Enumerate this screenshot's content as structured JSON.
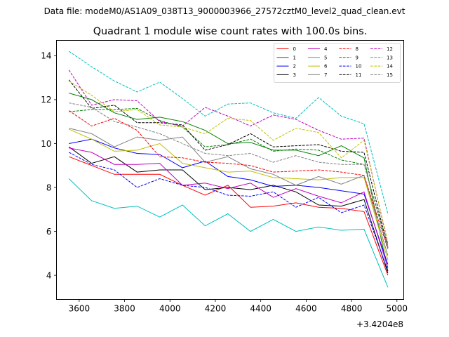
{
  "suptitle": "Data file: modeM0/AS1A09_038T13_9000003966_27572cztM0_level2_quad_clean.evt",
  "chart_data": {
    "type": "line",
    "title": "Quadrant 1 module wise count rates with 100.0s bins.",
    "xlabel": "",
    "ylabel": "",
    "x_offset_label": "+3.4204e8",
    "xlim": [
      3500,
      5030
    ],
    "ylim": [
      2.9,
      14.7
    ],
    "xticks": [
      3600,
      3800,
      4000,
      4200,
      4400,
      4600,
      4800,
      5000
    ],
    "yticks": [
      4,
      6,
      8,
      10,
      12,
      14
    ],
    "x": [
      3555,
      3655,
      3755,
      3855,
      3955,
      4055,
      4155,
      4255,
      4355,
      4455,
      4555,
      4655,
      4755,
      4855,
      4960
    ],
    "legend_position": "upper-right",
    "series": [
      {
        "name": "0",
        "color": "#ff0000",
        "dash": "solid",
        "values": [
          9.4,
          9.0,
          8.6,
          8.6,
          8.6,
          8.1,
          7.65,
          8.1,
          7.1,
          7.15,
          7.3,
          7.1,
          7.05,
          6.9,
          4.0
        ]
      },
      {
        "name": "1",
        "color": "#008000",
        "dash": "solid",
        "values": [
          12.3,
          12.0,
          11.4,
          11.1,
          11.2,
          11.0,
          10.6,
          10.0,
          10.05,
          9.7,
          9.7,
          9.45,
          9.9,
          9.35,
          4.2
        ]
      },
      {
        "name": "2",
        "color": "#0000ff",
        "dash": "solid",
        "values": [
          10.0,
          10.2,
          9.8,
          9.55,
          9.5,
          8.9,
          9.2,
          8.5,
          8.35,
          8.05,
          8.1,
          8.0,
          7.85,
          7.7,
          4.5
        ]
      },
      {
        "name": "3",
        "color": "#000000",
        "dash": "solid",
        "values": [
          9.85,
          9.1,
          9.4,
          8.7,
          8.8,
          8.8,
          7.9,
          8.0,
          7.9,
          8.1,
          7.8,
          7.2,
          7.15,
          7.45,
          4.1
        ]
      },
      {
        "name": "4",
        "color": "#bf00bf",
        "dash": "solid",
        "values": [
          9.8,
          9.6,
          9.05,
          9.05,
          9.1,
          8.1,
          8.2,
          7.95,
          8.2,
          7.55,
          7.95,
          7.6,
          7.3,
          7.8,
          4.35
        ]
      },
      {
        "name": "5",
        "color": "#00bfbf",
        "dash": "solid",
        "values": [
          8.4,
          7.4,
          7.05,
          7.15,
          6.65,
          7.2,
          6.25,
          6.8,
          6.0,
          6.55,
          6.0,
          6.2,
          6.05,
          6.1,
          3.45
        ]
      },
      {
        "name": "6",
        "color": "#bfbf00",
        "dash": "solid",
        "values": [
          10.65,
          10.2,
          9.65,
          9.7,
          10.0,
          9.1,
          8.9,
          8.7,
          8.75,
          8.45,
          8.4,
          8.35,
          8.45,
          8.45,
          4.7
        ]
      },
      {
        "name": "7",
        "color": "#808080",
        "dash": "solid",
        "values": [
          10.7,
          10.45,
          9.85,
          10.3,
          10.15,
          10.3,
          9.15,
          9.4,
          8.85,
          8.6,
          8.1,
          8.5,
          8.15,
          8.55,
          4.9
        ]
      },
      {
        "name": "8",
        "color": "#ff0000",
        "dash": "dashed",
        "values": [
          11.5,
          10.8,
          11.15,
          10.6,
          9.4,
          9.35,
          9.15,
          9.1,
          9.0,
          8.7,
          8.75,
          8.8,
          8.7,
          8.55,
          5.2
        ]
      },
      {
        "name": "9",
        "color": "#008000",
        "dash": "dashed",
        "values": [
          11.45,
          11.55,
          11.55,
          11.6,
          11.05,
          10.75,
          9.85,
          9.95,
          10.2,
          9.65,
          9.75,
          9.7,
          9.25,
          9.05,
          5.3
        ]
      },
      {
        "name": "10",
        "color": "#0000ff",
        "dash": "dashed",
        "values": [
          9.6,
          9.05,
          8.8,
          8.0,
          8.4,
          8.1,
          8.0,
          7.65,
          7.6,
          7.8,
          7.1,
          7.55,
          6.85,
          7.2,
          4.2
        ]
      },
      {
        "name": "11",
        "color": "#000000",
        "dash": "dashed",
        "values": [
          12.9,
          11.6,
          11.75,
          10.95,
          10.95,
          10.85,
          9.7,
          9.95,
          10.45,
          9.85,
          9.9,
          9.95,
          9.65,
          9.6,
          5.25
        ]
      },
      {
        "name": "12",
        "color": "#bf00bf",
        "dash": "dashed",
        "values": [
          13.35,
          11.75,
          12.0,
          11.95,
          11.0,
          10.8,
          11.65,
          11.25,
          10.8,
          11.3,
          11.1,
          10.6,
          10.2,
          10.25,
          5.4
        ]
      },
      {
        "name": "13",
        "color": "#00bfbf",
        "dash": "dashed",
        "values": [
          14.2,
          13.5,
          12.85,
          12.35,
          12.8,
          12.05,
          11.25,
          11.8,
          11.85,
          11.4,
          11.15,
          12.1,
          11.25,
          10.9,
          6.8
        ]
      },
      {
        "name": "14",
        "color": "#bfbf00",
        "dash": "dashed",
        "values": [
          12.85,
          12.2,
          11.45,
          11.55,
          10.85,
          10.75,
          10.45,
          11.15,
          11.05,
          10.15,
          10.7,
          10.5,
          9.35,
          10.15,
          5.5
        ]
      },
      {
        "name": "15",
        "color": "#808080",
        "dash": "dashed",
        "values": [
          11.85,
          11.65,
          11.0,
          10.75,
          10.45,
          10.0,
          9.55,
          9.45,
          9.55,
          9.15,
          9.45,
          9.15,
          9.05,
          9.05,
          5.2
        ]
      }
    ]
  }
}
